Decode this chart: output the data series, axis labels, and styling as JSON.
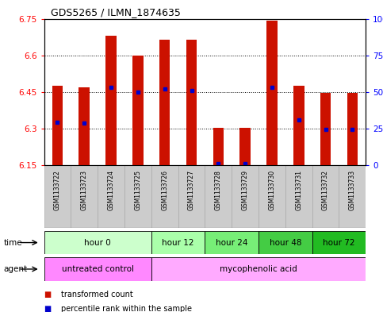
{
  "title": "GDS5265 / ILMN_1874635",
  "samples": [
    "GSM1133722",
    "GSM1133723",
    "GSM1133724",
    "GSM1133725",
    "GSM1133726",
    "GSM1133727",
    "GSM1133728",
    "GSM1133729",
    "GSM1133730",
    "GSM1133731",
    "GSM1133732",
    "GSM1133733"
  ],
  "bar_tops": [
    6.475,
    6.468,
    6.68,
    6.6,
    6.663,
    6.663,
    6.302,
    6.303,
    6.742,
    6.475,
    6.447,
    6.448
  ],
  "bar_base": 6.15,
  "percentile_values": [
    6.325,
    6.322,
    6.468,
    6.45,
    6.462,
    6.455,
    6.158,
    6.158,
    6.468,
    6.337,
    6.298,
    6.298
  ],
  "ymin": 6.15,
  "ymax": 6.75,
  "yticks_left": [
    6.15,
    6.3,
    6.45,
    6.6,
    6.75
  ],
  "ytick_labels_left": [
    "6.15",
    "6.3",
    "6.45",
    "6.6",
    "6.75"
  ],
  "yticks_right": [
    0,
    25,
    50,
    75,
    100
  ],
  "ytick_labels_right": [
    "0",
    "25",
    "50",
    "75",
    "100%"
  ],
  "bar_color": "#cc1100",
  "percentile_color": "#0000cc",
  "time_groups": [
    {
      "label": "hour 0",
      "start": 0,
      "end": 3,
      "color": "#ccffcc"
    },
    {
      "label": "hour 12",
      "start": 4,
      "end": 5,
      "color": "#aaffaa"
    },
    {
      "label": "hour 24",
      "start": 6,
      "end": 7,
      "color": "#77ee77"
    },
    {
      "label": "hour 48",
      "start": 8,
      "end": 9,
      "color": "#44cc44"
    },
    {
      "label": "hour 72",
      "start": 10,
      "end": 11,
      "color": "#22bb22"
    }
  ],
  "agent_groups": [
    {
      "label": "untreated control",
      "start": 0,
      "end": 3,
      "color": "#ff88ff"
    },
    {
      "label": "mycophenolic acid",
      "start": 4,
      "end": 11,
      "color": "#ffaaff"
    }
  ],
  "legend_items": [
    {
      "label": "transformed count",
      "color": "#cc1100",
      "marker": "s"
    },
    {
      "label": "percentile rank within the sample",
      "color": "#0000cc",
      "marker": "s"
    }
  ],
  "bar_width": 0.4,
  "sample_row_color": "#cccccc",
  "sample_fontsize": 5.5,
  "time_fontsize": 7.5,
  "agent_fontsize": 7.5
}
